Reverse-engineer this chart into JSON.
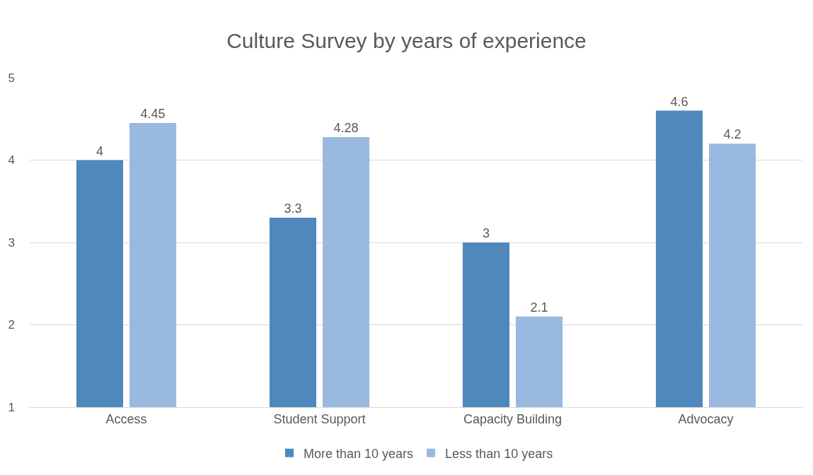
{
  "chart_data": {
    "type": "bar",
    "title": "Culture Survey by years of experience",
    "categories": [
      "Access",
      "Student Support",
      "Capacity Building",
      "Advocacy"
    ],
    "series": [
      {
        "name": "More than 10 years",
        "color": "#4f88bd",
        "values": [
          4,
          3.3,
          3,
          4.6
        ]
      },
      {
        "name": "Less than 10 years",
        "color": "#9ab9e0",
        "values": [
          4.45,
          4.28,
          2.1,
          4.2
        ]
      }
    ],
    "ylim": [
      1,
      5
    ],
    "yticks": [
      1,
      2,
      3,
      4,
      5
    ],
    "grid": "y",
    "legend": "bottom",
    "data_labels": true
  }
}
